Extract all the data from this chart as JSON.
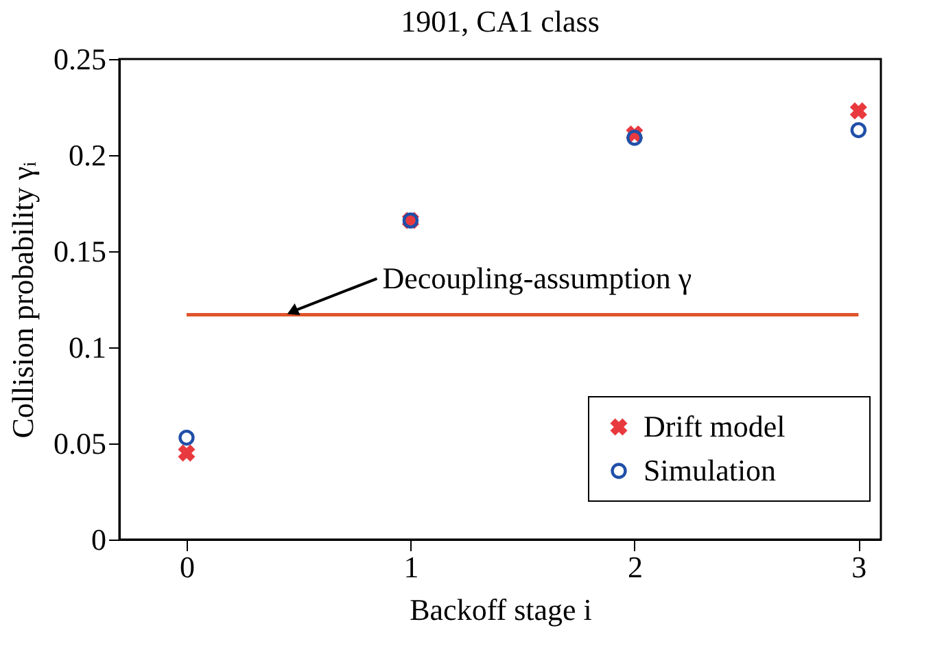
{
  "chart_data": {
    "type": "scatter",
    "title": "1901, CA1 class",
    "xlabel": "Backoff stage i",
    "ylabel": "Collision probability γᵢ",
    "x": [
      0,
      1,
      2,
      3
    ],
    "series": [
      {
        "name": "Drift model",
        "color": "#e8393f",
        "marker": "cross",
        "values": [
          0.045,
          0.166,
          0.211,
          0.223
        ]
      },
      {
        "name": "Simulation",
        "color": "#1f4fa8",
        "marker": "circle",
        "values": [
          0.053,
          0.166,
          0.209,
          0.213
        ]
      },
      {
        "type": "line",
        "x": [
          0,
          3
        ],
        "color": "#e0542a",
        "values": [
          0.117,
          0.117
        ],
        "marker": "none"
      }
    ],
    "annotations": [
      {
        "text": "Decoupling-assumption γ",
        "x": 0.45,
        "y": 0.117
      }
    ],
    "xlim": [
      -0.3,
      3.1
    ],
    "ylim": [
      0,
      0.25
    ],
    "xticks": [
      0,
      1,
      2,
      3
    ],
    "yticks": [
      0,
      0.05,
      0.1,
      0.15,
      0.2,
      0.25
    ],
    "grid": false,
    "legend": "bottom right"
  }
}
